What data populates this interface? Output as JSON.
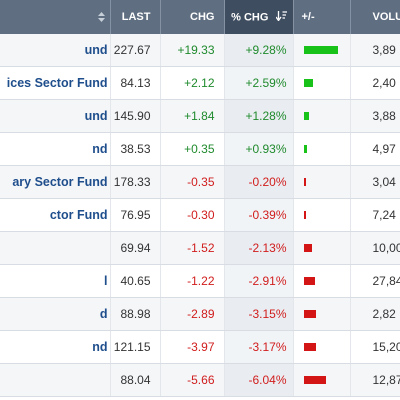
{
  "header": {
    "last": "LAST",
    "chg": "CHG",
    "pct_chg": "% CHG",
    "plus_minus": "+/-",
    "volume": "VOLU"
  },
  "colors": {
    "up": "#1f8a2c",
    "down": "#d11d1d",
    "bar_up": "#19c219",
    "bar_down": "#d41515",
    "header_bg": "#5f6e80",
    "header_active_bg": "#3f4d60",
    "link": "#1f4e8c"
  },
  "max_abs_pct": 9.28,
  "rows": [
    {
      "name": "und",
      "last": "227.67",
      "chg": "+19.33",
      "pct": "+9.28%",
      "pct_value": 9.28,
      "direction": "up",
      "volume": "3,89"
    },
    {
      "name": "ices Sector Fund",
      "last": "84.13",
      "chg": "+2.12",
      "pct": "+2.59%",
      "pct_value": 2.59,
      "direction": "up",
      "volume": "2,40"
    },
    {
      "name": "und",
      "last": "145.90",
      "chg": "+1.84",
      "pct": "+1.28%",
      "pct_value": 1.28,
      "direction": "up",
      "volume": "3,88"
    },
    {
      "name": "nd",
      "last": "38.53",
      "chg": "+0.35",
      "pct": "+0.93%",
      "pct_value": 0.93,
      "direction": "up",
      "volume": "4,97"
    },
    {
      "name": "ary Sector Fund",
      "last": "178.33",
      "chg": "-0.35",
      "pct": "-0.20%",
      "pct_value": -0.2,
      "direction": "down",
      "volume": "3,04"
    },
    {
      "name": "ctor Fund",
      "last": "76.95",
      "chg": "-0.30",
      "pct": "-0.39%",
      "pct_value": -0.39,
      "direction": "down",
      "volume": "7,24"
    },
    {
      "name": "",
      "last": "69.94",
      "chg": "-1.52",
      "pct": "-2.13%",
      "pct_value": -2.13,
      "direction": "down",
      "volume": "10,00"
    },
    {
      "name": "l",
      "last": "40.65",
      "chg": "-1.22",
      "pct": "-2.91%",
      "pct_value": -2.91,
      "direction": "down",
      "volume": "27,84"
    },
    {
      "name": "d",
      "last": "88.98",
      "chg": "-2.89",
      "pct": "-3.15%",
      "pct_value": -3.15,
      "direction": "down",
      "volume": "2,82"
    },
    {
      "name": "nd",
      "last": "121.15",
      "chg": "-3.97",
      "pct": "-3.17%",
      "pct_value": -3.17,
      "direction": "down",
      "volume": "15,20"
    },
    {
      "name": "",
      "last": "88.04",
      "chg": "-5.66",
      "pct": "-6.04%",
      "pct_value": -6.04,
      "direction": "down",
      "volume": "12,87"
    }
  ]
}
